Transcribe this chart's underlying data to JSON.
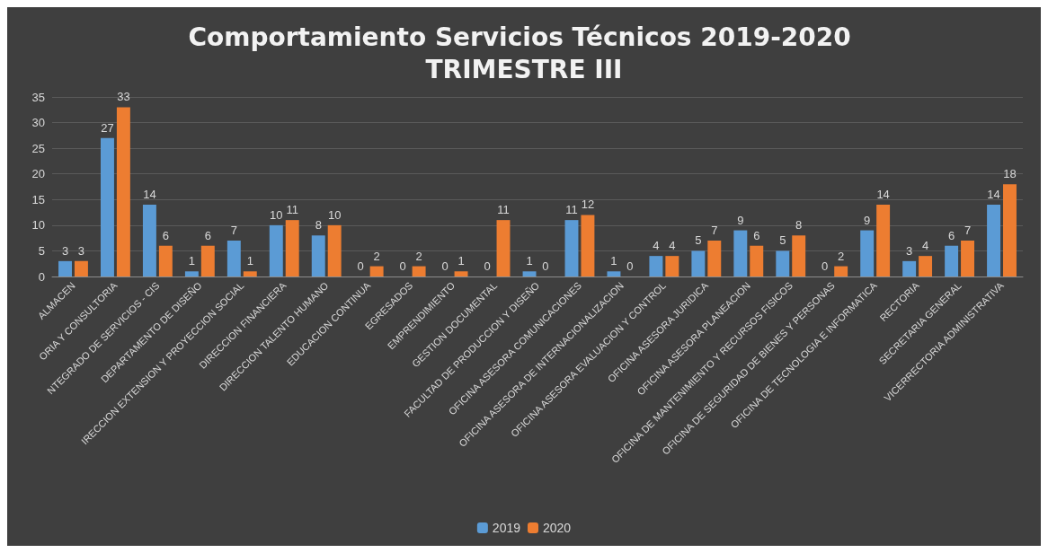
{
  "chart_data": {
    "type": "bar",
    "title": "Comportamiento Servicios Técnicos 2019-2020 TRIMESTRE III",
    "categories": [
      "ALMACEN",
      "ORIA Y CONSULTORIA",
      "NTEGRADO DE SERVICIOS - CIS",
      "DEPARTAMENTO DE DISEÑO",
      "IRECCION EXTENSION Y PROYECCION SOCIAL",
      "DIRECCION FINANCIERA",
      "DIRECCION TALENTO HUMANO",
      "EDUCACION CONTINUA",
      "EGRESADOS",
      "EMPRENDIMIENTO",
      "GESTION DOCUMENTAL",
      "FACULTAD DE PRODUCCION Y DISEÑO",
      "OFICINA ASESORA COMUNICACIONES",
      "OFICINA ASESORA DE INTERNACIONALIZACION",
      "OFICINA ASESORA EVALUACION Y CONTROL",
      "OFICINA ASESORA JURIDICA",
      "OFICINA ASESORA PLANEACION",
      "OFICINA DE MANTENIMIENTO Y RECURSOS FISICOS",
      "OFICINA DE SEGURIDAD DE BIENES Y PERSONAS",
      "OFICINA DE TECNOLOGIA E INFORMATICA",
      "RECTORIA",
      "SECRETARIA GENERAL",
      "VICERRECTORIA ADMINISTRATIVA"
    ],
    "series": [
      {
        "name": "2019",
        "color": "#5b9bd5",
        "values": [
          3,
          27,
          14,
          1,
          7,
          10,
          8,
          0,
          0,
          0,
          0,
          1,
          11,
          1,
          4,
          5,
          9,
          5,
          0,
          9,
          3,
          6,
          14
        ]
      },
      {
        "name": "2020",
        "color": "#ed7d31",
        "values": [
          3,
          33,
          6,
          6,
          1,
          11,
          10,
          2,
          2,
          1,
          11,
          0,
          12,
          0,
          4,
          7,
          6,
          8,
          2,
          14,
          4,
          7,
          18
        ]
      }
    ],
    "ylim": [
      0,
      35
    ],
    "yticks": [
      0,
      5,
      10,
      15,
      20,
      25,
      30,
      35
    ],
    "grid": "y",
    "legend": "bottom",
    "data_labels": true
  }
}
